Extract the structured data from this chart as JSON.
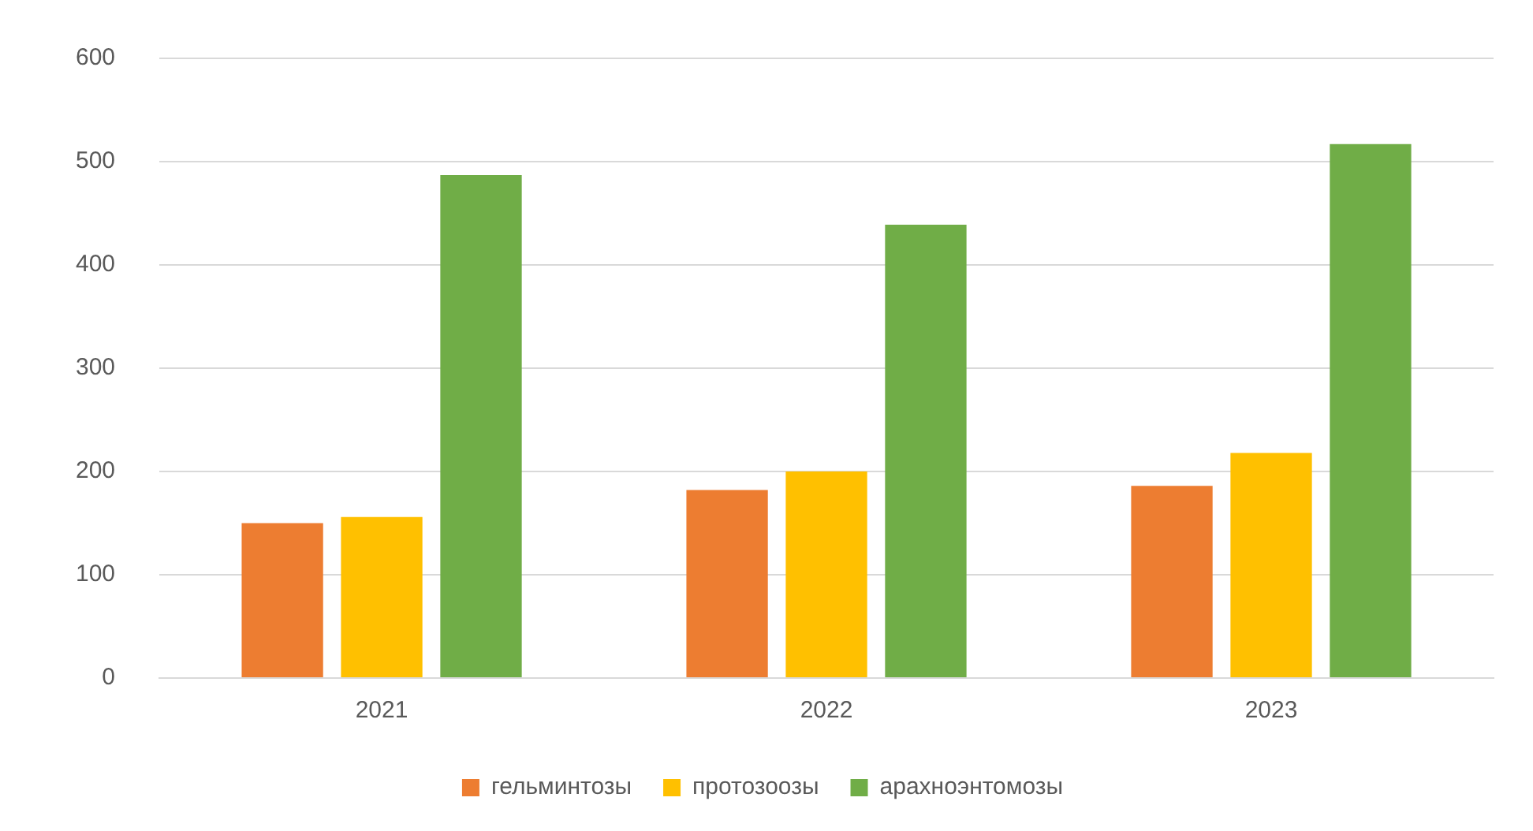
{
  "chart_data": {
    "type": "bar",
    "categories": [
      "2021",
      "2022",
      "2023"
    ],
    "series": [
      {
        "name": "гельминтозы",
        "color": "#ed7d31",
        "values": [
          150,
          182,
          186
        ]
      },
      {
        "name": "протозоозы",
        "color": "#ffc000",
        "values": [
          156,
          200,
          218
        ]
      },
      {
        "name": "арахноэнтомозы",
        "color": "#70ad47",
        "values": [
          487,
          439,
          517
        ]
      }
    ],
    "ylim": [
      0,
      600
    ],
    "yticks": [
      0,
      100,
      200,
      300,
      400,
      500,
      600
    ],
    "grid": "y",
    "legend": "bottom"
  }
}
